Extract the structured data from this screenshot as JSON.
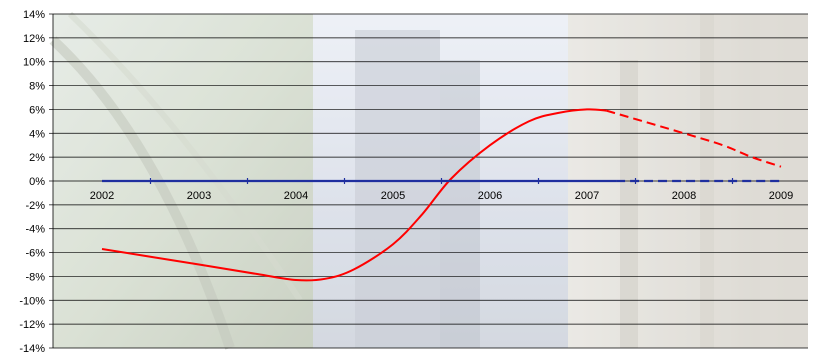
{
  "chart_data": {
    "type": "line",
    "title": "",
    "xlabel": "",
    "ylabel": "",
    "categories": [
      "2002",
      "2003",
      "2004",
      "2005",
      "2006",
      "2007",
      "2008",
      "2009"
    ],
    "ylim": [
      -14,
      14
    ],
    "ytick_step": 2,
    "y_tick_labels": [
      "14%",
      "12%",
      "10%",
      "8%",
      "6%",
      "4%",
      "2%",
      "0%",
      "-2%",
      "-4%",
      "-6%",
      "-8%",
      "-10%",
      "-12%",
      "-14%"
    ],
    "grid": true,
    "legend": "none",
    "series": [
      {
        "points": [
          {
            "x": 2002,
            "y": -5.7
          },
          {
            "x": 2003,
            "y": -7.0
          },
          {
            "x": 2003.6,
            "y": -7.8
          },
          {
            "x": 2004,
            "y": -8.3
          },
          {
            "x": 2004.3,
            "y": -8.2
          },
          {
            "x": 2004.6,
            "y": -7.4
          },
          {
            "x": 2005,
            "y": -5.3
          },
          {
            "x": 2005.3,
            "y": -2.8
          },
          {
            "x": 2005.6,
            "y": 0.2
          },
          {
            "x": 2006,
            "y": 3.0
          },
          {
            "x": 2006.4,
            "y": 5.0
          },
          {
            "x": 2006.7,
            "y": 5.7
          },
          {
            "x": 2007,
            "y": 6.0
          },
          {
            "x": 2007.2,
            "y": 5.9
          }
        ],
        "color": "#ff0000",
        "style": "solid"
      },
      {
        "points": [
          {
            "x": 2007.2,
            "y": 5.9
          },
          {
            "x": 2008,
            "y": 4.0
          },
          {
            "x": 2008.4,
            "y": 3.0
          },
          {
            "x": 2008.7,
            "y": 2.0
          },
          {
            "x": 2009,
            "y": 1.2
          }
        ],
        "color": "#ff0000",
        "style": "dashed"
      },
      {
        "points": [
          {
            "x": 2002,
            "y": 0
          },
          {
            "x": 2007.3,
            "y": 0
          }
        ],
        "color": "#1f2f9f",
        "style": "solid"
      },
      {
        "points": [
          {
            "x": 2007.3,
            "y": 0
          },
          {
            "x": 2009,
            "y": 0
          }
        ],
        "color": "#1f2f9f",
        "style": "dashed"
      }
    ]
  }
}
